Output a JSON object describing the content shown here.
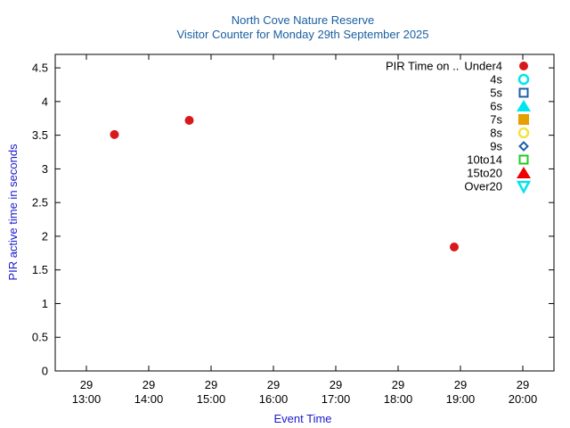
{
  "chart_data": {
    "type": "scatter",
    "title": "North Cove Nature Reserve",
    "subtitle": "Visitor Counter for Monday 29th September 2025",
    "xlabel": "Event Time",
    "ylabel": "PIR active time in seconds",
    "xlim": [
      "12:30",
      "20:30"
    ],
    "ylim": [
      0,
      4.7
    ],
    "x_ticks": [
      {
        "day": "29",
        "time": "13:00"
      },
      {
        "day": "29",
        "time": "14:00"
      },
      {
        "day": "29",
        "time": "15:00"
      },
      {
        "day": "29",
        "time": "16:00"
      },
      {
        "day": "29",
        "time": "17:00"
      },
      {
        "day": "29",
        "time": "18:00"
      },
      {
        "day": "29",
        "time": "19:00"
      },
      {
        "day": "29",
        "time": "20:00"
      }
    ],
    "y_ticks": [
      "0",
      "0.5",
      "1",
      "1.5",
      "2",
      "2.5",
      "3",
      "3.5",
      "4",
      "4.5"
    ],
    "grid": false,
    "legend_position": "top-right",
    "legend_title": "PIR Time on ..",
    "series": [
      {
        "name": "Under4",
        "marker": "circle-filled",
        "color": "#d7191c",
        "points": [
          {
            "x": "13:27",
            "y": 3.51
          },
          {
            "x": "14:39",
            "y": 3.72
          },
          {
            "x": "18:54",
            "y": 1.84
          }
        ]
      },
      {
        "name": "4s",
        "marker": "circle-open",
        "color": "#00e5ee",
        "points": []
      },
      {
        "name": "5s",
        "marker": "square-open",
        "color": "#1f5fa8",
        "points": []
      },
      {
        "name": "6s",
        "marker": "triangle-filled",
        "color": "#00e5ee",
        "points": []
      },
      {
        "name": "7s",
        "marker": "square-filled",
        "color": "#e69f00",
        "points": []
      },
      {
        "name": "8s",
        "marker": "circle-open",
        "color": "#f0e442",
        "points": []
      },
      {
        "name": "9s",
        "marker": "diamond-open",
        "color": "#1f5fa8",
        "points": []
      },
      {
        "name": "10to14",
        "marker": "square-open",
        "color": "#22cc22",
        "points": []
      },
      {
        "name": "15to20",
        "marker": "triangle-filled",
        "color": "#ee0000",
        "points": []
      },
      {
        "name": "Over20",
        "marker": "triangle-down-open",
        "color": "#00e5ee",
        "points": []
      }
    ]
  }
}
